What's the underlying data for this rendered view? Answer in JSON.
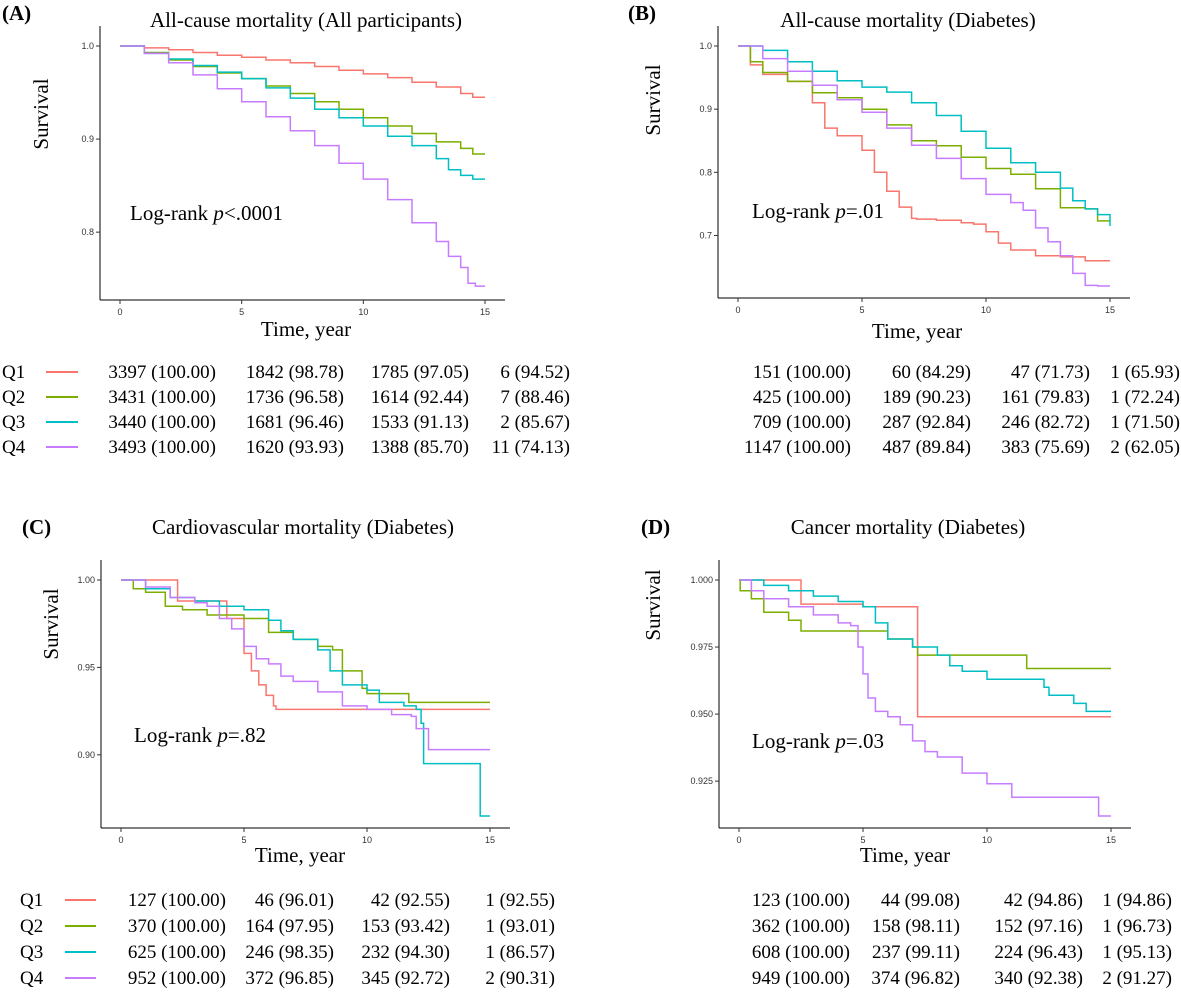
{
  "figure": {
    "group_labels": [
      "Q1",
      "Q2",
      "Q3",
      "Q4"
    ],
    "colors": {
      "Q1": "#F8766D",
      "Q2": "#7CAE00",
      "Q3": "#00BFC4",
      "Q4": "#C77CFF"
    }
  },
  "chart_data": [
    {
      "type": "line",
      "panel_label": "(A)",
      "title": "All-cause mortality (All participants)",
      "xlabel": "Time, year",
      "ylabel": "Survival",
      "xlim": [
        0,
        15
      ],
      "ylim": [
        0.74,
        1.0
      ],
      "xticks": [
        "0",
        "5",
        "10",
        "15"
      ],
      "yticks": [
        {
          "v": 0.8,
          "label": "0.8"
        },
        {
          "v": 0.9,
          "label": "0.9"
        },
        {
          "v": 1.0,
          "label": "1.0"
        }
      ],
      "annotation": {
        "prefix": "Log-rank ",
        "p": "p",
        "value": "<.0001"
      },
      "series": [
        {
          "name": "Q1",
          "x": [
            0,
            1,
            2,
            3,
            4,
            5,
            6,
            7,
            8,
            9,
            10,
            11,
            12,
            13,
            14,
            14.5,
            15
          ],
          "y": [
            1.0,
            0.998,
            0.996,
            0.993,
            0.99,
            0.988,
            0.985,
            0.982,
            0.978,
            0.974,
            0.97,
            0.966,
            0.961,
            0.956,
            0.949,
            0.945,
            0.945
          ]
        },
        {
          "name": "Q2",
          "x": [
            0,
            1,
            2,
            3,
            4,
            5,
            6,
            7,
            8,
            9,
            10,
            11,
            12,
            13,
            14,
            14.5,
            15
          ],
          "y": [
            1.0,
            0.993,
            0.985,
            0.978,
            0.971,
            0.965,
            0.957,
            0.949,
            0.94,
            0.932,
            0.923,
            0.914,
            0.906,
            0.897,
            0.89,
            0.884,
            0.884
          ]
        },
        {
          "name": "Q3",
          "x": [
            0,
            1,
            2,
            3,
            4,
            5,
            6,
            7,
            8,
            9,
            10,
            11,
            12,
            13,
            13.5,
            14,
            14.5,
            15
          ],
          "y": [
            1.0,
            0.992,
            0.986,
            0.979,
            0.972,
            0.965,
            0.955,
            0.944,
            0.932,
            0.923,
            0.914,
            0.903,
            0.893,
            0.879,
            0.867,
            0.861,
            0.857,
            0.857
          ]
        },
        {
          "name": "Q4",
          "x": [
            0,
            1,
            2,
            3,
            4,
            5,
            6,
            7,
            8,
            9,
            10,
            11,
            12,
            13,
            13.5,
            14,
            14.3,
            14.6,
            15
          ],
          "y": [
            1.0,
            0.992,
            0.982,
            0.969,
            0.954,
            0.94,
            0.924,
            0.909,
            0.893,
            0.874,
            0.857,
            0.835,
            0.81,
            0.79,
            0.774,
            0.762,
            0.745,
            0.742,
            0.742
          ]
        }
      ],
      "risk_table": {
        "Q1": [
          "3397 (100.00)",
          "1842 (98.78)",
          "1785 (97.05)",
          "6 (94.52)"
        ],
        "Q2": [
          "3431 (100.00)",
          "1736 (96.58)",
          "1614 (92.44)",
          "7 (88.46)"
        ],
        "Q3": [
          "3440 (100.00)",
          "1681 (96.46)",
          "1533 (91.13)",
          "2 (85.67)"
        ],
        "Q4": [
          "3493 (100.00)",
          "1620 (93.93)",
          "1388 (85.70)",
          "11 (74.13)"
        ]
      }
    },
    {
      "type": "line",
      "panel_label": "(B)",
      "title": "All-cause mortality (Diabetes)",
      "xlabel": "Time, year",
      "ylabel": "Survival",
      "xlim": [
        0,
        15
      ],
      "ylim": [
        0.62,
        1.0
      ],
      "xticks": [
        "0",
        "5",
        "10",
        "15"
      ],
      "yticks": [
        {
          "v": 0.7,
          "label": "0.7"
        },
        {
          "v": 0.8,
          "label": "0.8"
        },
        {
          "v": 0.9,
          "label": "0.9"
        },
        {
          "v": 1.0,
          "label": "1.0"
        }
      ],
      "annotation": {
        "prefix": "Log-rank ",
        "p": "p",
        "value": "=.01"
      },
      "series": [
        {
          "name": "Q1",
          "x": [
            0,
            0.5,
            1,
            2,
            3,
            3.5,
            4,
            5,
            5.5,
            6,
            6.5,
            7,
            7.2,
            8,
            9,
            9.5,
            10,
            10.5,
            11,
            12,
            13,
            14,
            15
          ],
          "y": [
            1.0,
            0.97,
            0.955,
            0.944,
            0.91,
            0.87,
            0.858,
            0.835,
            0.8,
            0.77,
            0.745,
            0.727,
            0.726,
            0.724,
            0.72,
            0.718,
            0.706,
            0.688,
            0.677,
            0.668,
            0.666,
            0.66,
            0.66
          ]
        },
        {
          "name": "Q2",
          "x": [
            0,
            0.5,
            1,
            2,
            3,
            4,
            5,
            6,
            7,
            8,
            9,
            10,
            11,
            12,
            13,
            14,
            14.5,
            15
          ],
          "y": [
            1.0,
            0.975,
            0.958,
            0.944,
            0.926,
            0.918,
            0.9,
            0.875,
            0.85,
            0.842,
            0.824,
            0.806,
            0.797,
            0.774,
            0.744,
            0.742,
            0.723,
            0.723
          ]
        },
        {
          "name": "Q3",
          "x": [
            0,
            1,
            2,
            3,
            4,
            5,
            6,
            7,
            8,
            9,
            10,
            11,
            12,
            13,
            13.5,
            14,
            14.5,
            15
          ],
          "y": [
            1.0,
            0.993,
            0.975,
            0.96,
            0.945,
            0.935,
            0.927,
            0.91,
            0.89,
            0.865,
            0.838,
            0.815,
            0.8,
            0.775,
            0.755,
            0.742,
            0.733,
            0.715
          ]
        },
        {
          "name": "Q4",
          "x": [
            0,
            1,
            2,
            3,
            4,
            5,
            6,
            7,
            8,
            9,
            10,
            11,
            11.5,
            12,
            12.5,
            13,
            13.5,
            14,
            14.5,
            15
          ],
          "y": [
            1.0,
            0.98,
            0.96,
            0.938,
            0.915,
            0.895,
            0.87,
            0.843,
            0.822,
            0.79,
            0.765,
            0.752,
            0.74,
            0.712,
            0.69,
            0.668,
            0.64,
            0.621,
            0.62,
            0.62
          ]
        }
      ],
      "risk_table": {
        "Q1": [
          "151 (100.00)",
          "60 (84.29)",
          "47 (71.73)",
          "1 (65.93)"
        ],
        "Q2": [
          "425 (100.00)",
          "189 (90.23)",
          "161 (79.83)",
          "1 (72.24)"
        ],
        "Q3": [
          "709 (100.00)",
          "287 (92.84)",
          "246 (82.72)",
          "1 (71.50)"
        ],
        "Q4": [
          "1147 (100.00)",
          "487 (89.84)",
          "383 (75.69)",
          "2 (62.05)"
        ]
      }
    },
    {
      "type": "line",
      "panel_label": "(C)",
      "title": "Cardiovascular mortality (Diabetes)",
      "xlabel": "Time, year",
      "ylabel": "Survival",
      "xlim": [
        0,
        15
      ],
      "ylim": [
        0.865,
        1.0
      ],
      "xticks": [
        "0",
        "5",
        "10",
        "15"
      ],
      "yticks": [
        {
          "v": 0.9,
          "label": "0.90"
        },
        {
          "v": 0.95,
          "label": "0.95"
        },
        {
          "v": 1.0,
          "label": "1.00"
        }
      ],
      "annotation": {
        "prefix": "Log-rank ",
        "p": "p",
        "value": "=.82"
      },
      "series": [
        {
          "name": "Q1",
          "x": [
            0,
            2.2,
            2.3,
            4.2,
            4.3,
            4.8,
            5.0,
            5.3,
            5.6,
            5.9,
            6.2,
            6.3,
            15
          ],
          "y": [
            1.0,
            1.0,
            0.988,
            0.988,
            0.978,
            0.978,
            0.958,
            0.948,
            0.94,
            0.934,
            0.928,
            0.926,
            0.926
          ]
        },
        {
          "name": "Q2",
          "x": [
            0,
            0.5,
            1,
            1.8,
            2.5,
            3.5,
            5,
            6,
            7,
            8,
            8.6,
            9,
            9.8,
            10,
            11.5,
            11.7,
            15
          ],
          "y": [
            1.0,
            0.995,
            0.993,
            0.985,
            0.983,
            0.98,
            0.978,
            0.97,
            0.966,
            0.962,
            0.96,
            0.948,
            0.938,
            0.935,
            0.935,
            0.93,
            0.93
          ]
        },
        {
          "name": "Q3",
          "x": [
            0,
            1,
            2,
            3,
            4,
            5,
            6,
            6.5,
            7,
            8,
            8.5,
            9,
            10,
            10.5,
            11,
            11.5,
            12,
            12.2,
            12.3,
            14,
            14.5,
            14.6,
            15
          ],
          "y": [
            1.0,
            0.995,
            0.99,
            0.988,
            0.985,
            0.983,
            0.977,
            0.971,
            0.966,
            0.96,
            0.948,
            0.94,
            0.937,
            0.93,
            0.93,
            0.928,
            0.926,
            0.918,
            0.895,
            0.895,
            0.895,
            0.865,
            0.865
          ]
        },
        {
          "name": "Q4",
          "x": [
            0,
            1,
            2,
            3,
            3.5,
            4,
            4.5,
            5,
            5.5,
            6,
            6.5,
            7,
            8,
            9,
            10,
            11,
            11.8,
            12,
            12.3,
            12.5,
            15
          ],
          "y": [
            1.0,
            0.996,
            0.99,
            0.987,
            0.985,
            0.978,
            0.972,
            0.962,
            0.955,
            0.952,
            0.945,
            0.942,
            0.936,
            0.928,
            0.926,
            0.923,
            0.922,
            0.915,
            0.915,
            0.903,
            0.903
          ]
        }
      ],
      "risk_table": {
        "Q1": [
          "127 (100.00)",
          "46 (96.01)",
          "42 (92.55)",
          "1 (92.55)"
        ],
        "Q2": [
          "370 (100.00)",
          "164 (97.95)",
          "153 (93.42)",
          "1 (93.01)"
        ],
        "Q3": [
          "625 (100.00)",
          "246 (98.35)",
          "232 (94.30)",
          "1 (86.57)"
        ],
        "Q4": [
          "952 (100.00)",
          "372 (96.85)",
          "345 (92.72)",
          "2 (90.31)"
        ]
      }
    },
    {
      "type": "line",
      "panel_label": "(D)",
      "title": "Cancer mortality (Diabetes)",
      "xlabel": "Time, year",
      "ylabel": "Survival",
      "xlim": [
        0,
        15
      ],
      "ylim": [
        0.912,
        1.0
      ],
      "xticks": [
        "0",
        "5",
        "10",
        "15"
      ],
      "yticks": [
        {
          "v": 0.925,
          "label": "0.925"
        },
        {
          "v": 0.95,
          "label": "0.950"
        },
        {
          "v": 0.975,
          "label": "0.975"
        },
        {
          "v": 1.0,
          "label": "1.000"
        }
      ],
      "annotation": {
        "prefix": "Log-rank ",
        "p": "p",
        "value": "=.03"
      },
      "series": [
        {
          "name": "Q1",
          "x": [
            0,
            2.4,
            2.5,
            4.9,
            5.0,
            7.2,
            7.3,
            15
          ],
          "y": [
            1.0,
            1.0,
            0.991,
            0.991,
            0.99,
            0.949,
            0.949,
            0.949
          ]
        },
        {
          "name": "Q2",
          "x": [
            0,
            0.05,
            0.5,
            1,
            1.5,
            2,
            2.5,
            4,
            5,
            6,
            7,
            7.2,
            11.5,
            11.6,
            15
          ],
          "y": [
            1.0,
            0.996,
            0.993,
            0.988,
            0.988,
            0.985,
            0.981,
            0.981,
            0.981,
            0.978,
            0.975,
            0.972,
            0.972,
            0.967,
            0.967
          ]
        },
        {
          "name": "Q3",
          "x": [
            0,
            1,
            2,
            3,
            4,
            5,
            5.5,
            6,
            7,
            8,
            8.5,
            9,
            10,
            11,
            12,
            12.3,
            12.5,
            13,
            13.5,
            14,
            15
          ],
          "y": [
            1.0,
            0.998,
            0.996,
            0.994,
            0.992,
            0.99,
            0.984,
            0.978,
            0.975,
            0.972,
            0.968,
            0.966,
            0.963,
            0.963,
            0.963,
            0.96,
            0.957,
            0.957,
            0.954,
            0.951,
            0.951
          ]
        },
        {
          "name": "Q4",
          "x": [
            0,
            0.5,
            1,
            2,
            3,
            4,
            4.5,
            4.8,
            5,
            5.2,
            5.5,
            6,
            6.5,
            7,
            7.5,
            8,
            9,
            10,
            11,
            12,
            13,
            14.5,
            15
          ],
          "y": [
            1.0,
            0.996,
            0.993,
            0.99,
            0.987,
            0.984,
            0.983,
            0.975,
            0.965,
            0.956,
            0.951,
            0.949,
            0.946,
            0.94,
            0.936,
            0.934,
            0.928,
            0.924,
            0.919,
            0.919,
            0.919,
            0.912,
            0.912
          ]
        }
      ],
      "risk_table": {
        "Q1": [
          "123 (100.00)",
          "44 (99.08)",
          "42 (94.86)",
          "1 (94.86)"
        ],
        "Q2": [
          "362 (100.00)",
          "158 (98.11)",
          "152 (97.16)",
          "1 (96.73)"
        ],
        "Q3": [
          "608 (100.00)",
          "237 (99.11)",
          "224 (96.43)",
          "1 (95.13)"
        ],
        "Q4": [
          "949 (100.00)",
          "374 (96.82)",
          "340 (92.38)",
          "2 (91.27)"
        ]
      }
    }
  ]
}
